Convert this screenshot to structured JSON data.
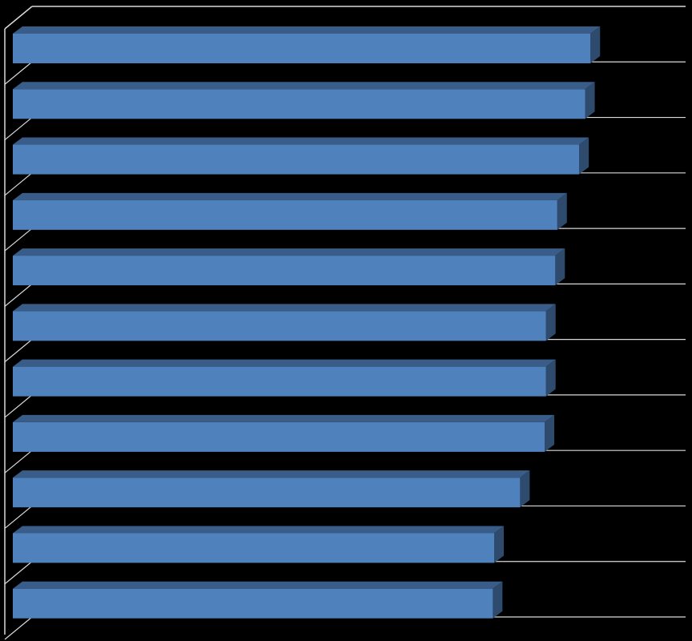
{
  "chart_data": {
    "type": "bar3d",
    "orientation": "horizontal",
    "categories": [
      null,
      null,
      null,
      null,
      null,
      null,
      null,
      null,
      null,
      null,
      null
    ],
    "values": [
      87.0,
      86.2,
      85.3,
      82.0,
      81.7,
      80.3,
      80.3,
      80.1,
      76.4,
      72.5,
      72.3
    ],
    "color": "#4f81bd",
    "xlim": [
      0,
      100
    ],
    "grid": true
  }
}
